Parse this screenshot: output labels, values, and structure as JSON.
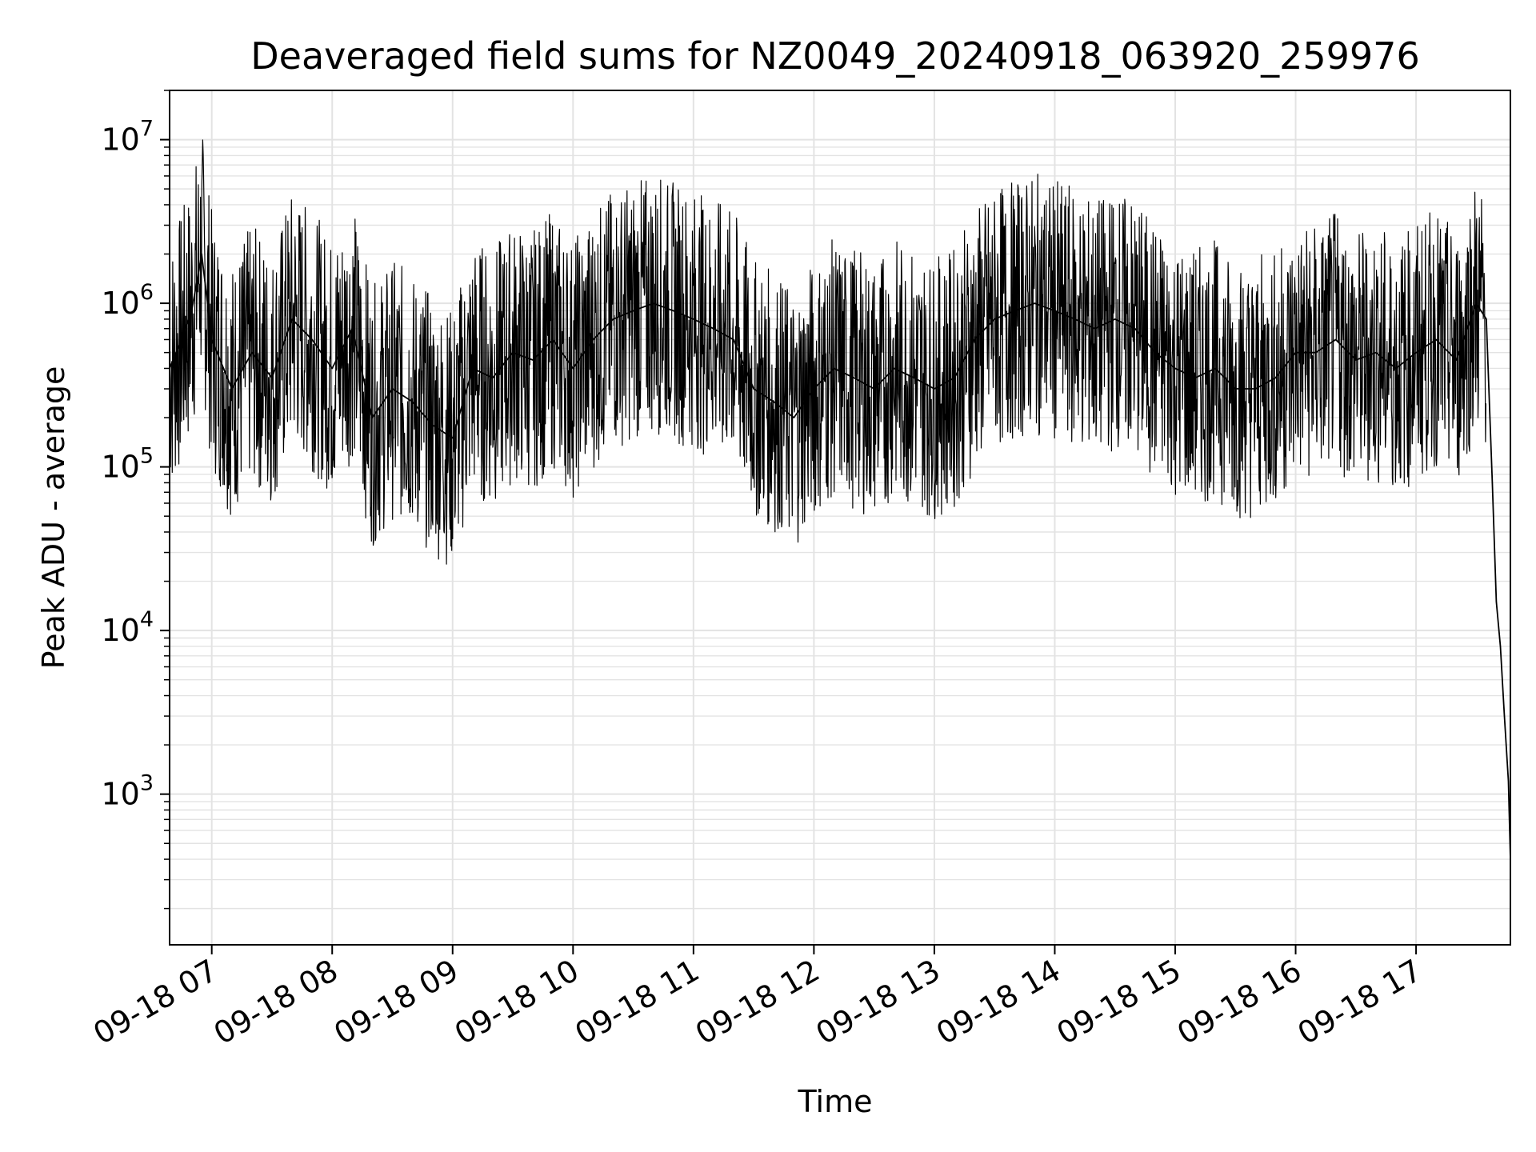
{
  "chart_data": {
    "type": "line",
    "title": "Deaveraged field sums for NZ0049_20240918_063920_259976",
    "xlabel": "Time",
    "ylabel": "Peak ADU - average",
    "yscale": "log",
    "ylim": [
      120,
      20000000
    ],
    "xlim": [
      "2024-09-18 06:39",
      "2024-09-18 17:47"
    ],
    "grid": true,
    "line_color": "#000000",
    "grid_color": "#e3e3e3",
    "x_ticks": [
      {
        "value": "2024-09-18 07:00",
        "label": "09-18 07"
      },
      {
        "value": "2024-09-18 08:00",
        "label": "09-18 08"
      },
      {
        "value": "2024-09-18 09:00",
        "label": "09-18 09"
      },
      {
        "value": "2024-09-18 10:00",
        "label": "09-18 10"
      },
      {
        "value": "2024-09-18 11:00",
        "label": "09-18 11"
      },
      {
        "value": "2024-09-18 12:00",
        "label": "09-18 12"
      },
      {
        "value": "2024-09-18 13:00",
        "label": "09-18 13"
      },
      {
        "value": "2024-09-18 14:00",
        "label": "09-18 14"
      },
      {
        "value": "2024-09-18 15:00",
        "label": "09-18 15"
      },
      {
        "value": "2024-09-18 16:00",
        "label": "09-18 16"
      },
      {
        "value": "2024-09-18 17:00",
        "label": "09-18 17"
      }
    ],
    "y_ticks": [
      {
        "value": 1000,
        "base": "10",
        "exp": "3"
      },
      {
        "value": 10000,
        "base": "10",
        "exp": "4"
      },
      {
        "value": 100000,
        "base": "10",
        "exp": "5"
      },
      {
        "value": 1000000,
        "base": "10",
        "exp": "6"
      },
      {
        "value": 10000000,
        "base": "10",
        "exp": "7"
      }
    ],
    "series": [
      {
        "x": [
          "2024-09-18 06:39",
          "2024-09-18 06:45",
          "2024-09-18 06:50",
          "2024-09-18 06:55",
          "2024-09-18 07:00",
          "2024-09-18 07:10",
          "2024-09-18 07:20",
          "2024-09-18 07:30",
          "2024-09-18 07:40",
          "2024-09-18 07:50",
          "2024-09-18 08:00",
          "2024-09-18 08:10",
          "2024-09-18 08:20",
          "2024-09-18 08:30",
          "2024-09-18 08:40",
          "2024-09-18 08:50",
          "2024-09-18 09:00",
          "2024-09-18 09:10",
          "2024-09-18 09:20",
          "2024-09-18 09:30",
          "2024-09-18 09:40",
          "2024-09-18 09:50",
          "2024-09-18 10:00",
          "2024-09-18 10:10",
          "2024-09-18 10:20",
          "2024-09-18 10:30",
          "2024-09-18 10:40",
          "2024-09-18 10:50",
          "2024-09-18 11:00",
          "2024-09-18 11:10",
          "2024-09-18 11:20",
          "2024-09-18 11:30",
          "2024-09-18 11:40",
          "2024-09-18 11:50",
          "2024-09-18 12:00",
          "2024-09-18 12:10",
          "2024-09-18 12:20",
          "2024-09-18 12:30",
          "2024-09-18 12:40",
          "2024-09-18 12:50",
          "2024-09-18 13:00",
          "2024-09-18 13:10",
          "2024-09-18 13:20",
          "2024-09-18 13:30",
          "2024-09-18 13:40",
          "2024-09-18 13:50",
          "2024-09-18 14:00",
          "2024-09-18 14:10",
          "2024-09-18 14:20",
          "2024-09-18 14:30",
          "2024-09-18 14:40",
          "2024-09-18 14:50",
          "2024-09-18 15:00",
          "2024-09-18 15:10",
          "2024-09-18 15:20",
          "2024-09-18 15:30",
          "2024-09-18 15:40",
          "2024-09-18 15:50",
          "2024-09-18 16:00",
          "2024-09-18 16:10",
          "2024-09-18 16:20",
          "2024-09-18 16:30",
          "2024-09-18 16:40",
          "2024-09-18 16:50",
          "2024-09-18 17:00",
          "2024-09-18 17:10",
          "2024-09-18 17:20",
          "2024-09-18 17:30",
          "2024-09-18 17:35",
          "2024-09-18 17:38",
          "2024-09-18 17:40",
          "2024-09-18 17:42",
          "2024-09-18 17:44",
          "2024-09-18 17:46",
          "2024-09-18 17:47"
        ],
        "y": [
          400000,
          600000,
          900000,
          2000000,
          600000,
          300000,
          500000,
          350000,
          800000,
          600000,
          400000,
          700000,
          200000,
          300000,
          250000,
          180000,
          150000,
          400000,
          350000,
          500000,
          450000,
          600000,
          400000,
          600000,
          800000,
          900000,
          1000000,
          900000,
          800000,
          700000,
          600000,
          300000,
          250000,
          200000,
          300000,
          400000,
          350000,
          300000,
          400000,
          350000,
          300000,
          350000,
          600000,
          800000,
          900000,
          1000000,
          900000,
          800000,
          700000,
          800000,
          700000,
          500000,
          400000,
          350000,
          400000,
          300000,
          300000,
          350000,
          500000,
          500000,
          600000,
          450000,
          500000,
          400000,
          500000,
          600000,
          450000,
          1000000,
          800000,
          80000,
          15000,
          8000,
          3000,
          1200,
          400
        ]
      }
    ]
  }
}
